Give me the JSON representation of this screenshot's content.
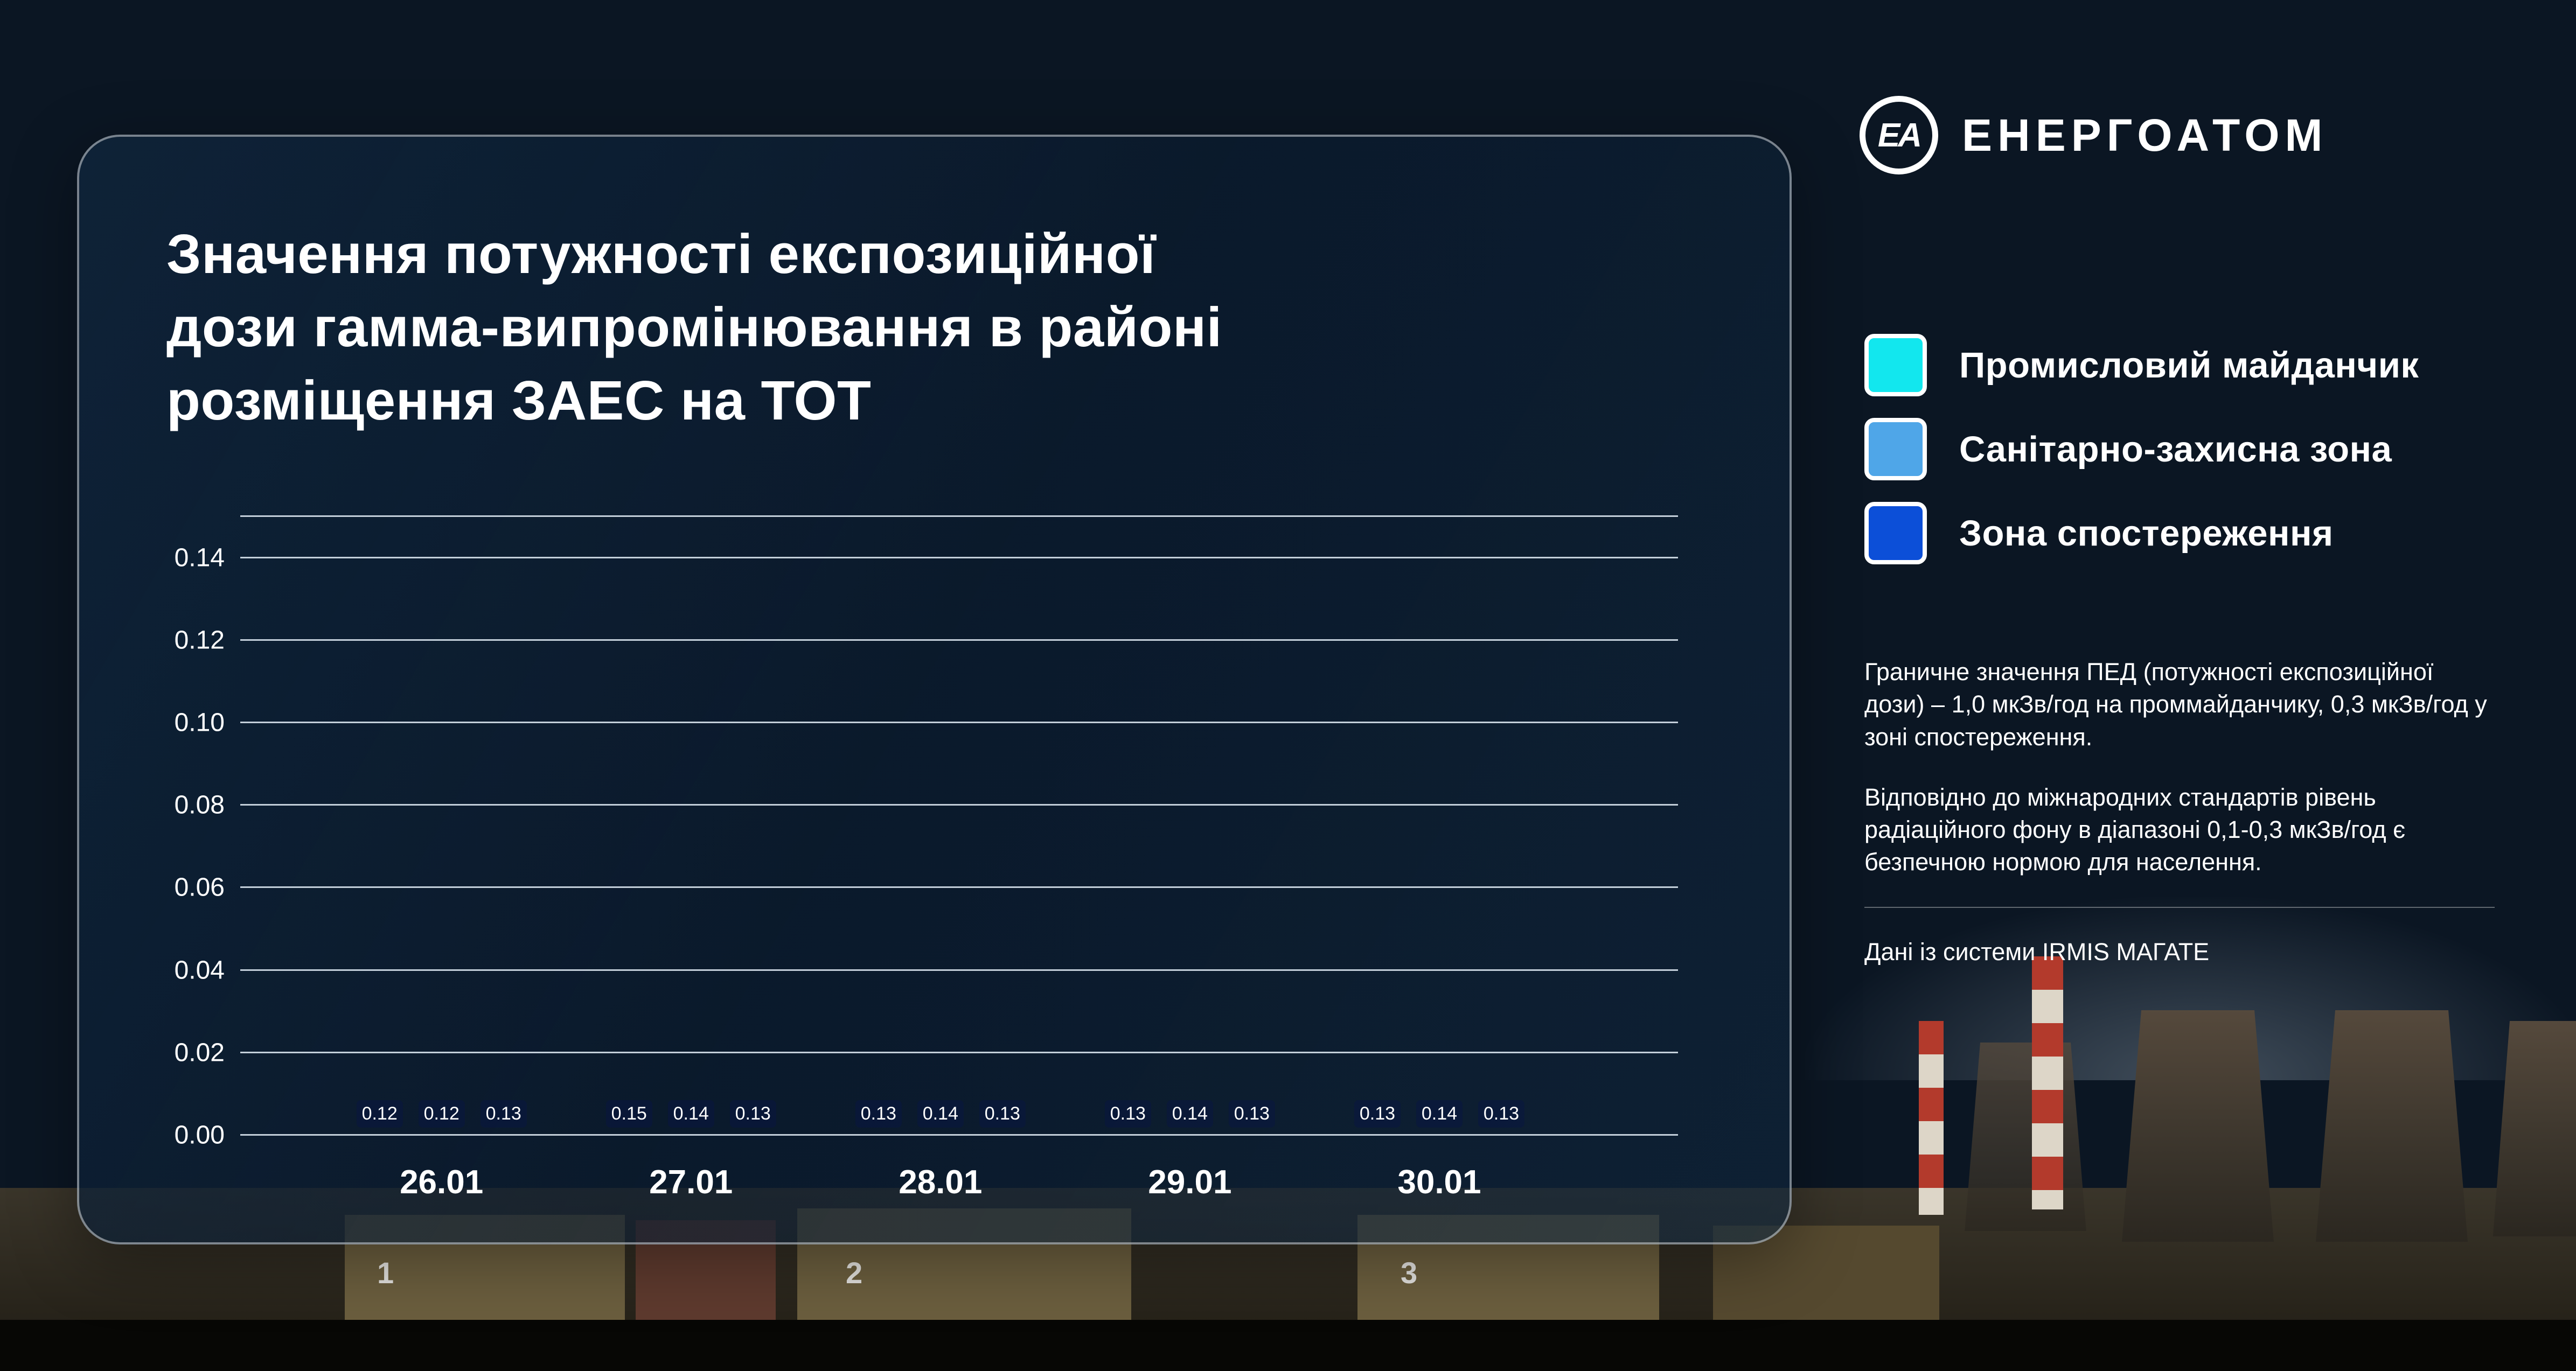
{
  "brand": {
    "name": "ЕНЕРГОАТОМ",
    "monogram": "ЕА"
  },
  "card": {
    "title_lines": [
      "Значення потужності експозиційної",
      "дози гамма-випромінювання в районі",
      "розміщення ЗАЕС на ТОТ"
    ]
  },
  "chart_data": {
    "type": "bar",
    "title": "Значення потужності експозиційної дози гамма-випромінювання в районі розміщення ЗАЕС на ТОТ",
    "categories": [
      "26.01",
      "27.01",
      "28.01",
      "29.01",
      "30.01"
    ],
    "series": [
      {
        "name": "Промисловий майданчик",
        "color": "#12E7EE",
        "values": [
          0.12,
          0.15,
          0.13,
          0.13,
          0.13
        ]
      },
      {
        "name": "Санітарно-захисна зона",
        "color": "#4FA6E8",
        "values": [
          0.12,
          0.14,
          0.14,
          0.14,
          0.14
        ]
      },
      {
        "name": "Зона спостереження",
        "color": "#0C4FD8",
        "values": [
          0.13,
          0.13,
          0.13,
          0.13,
          0.13
        ]
      }
    ],
    "y_ticks": [
      0,
      0.02,
      0.04,
      0.06,
      0.08,
      0.1,
      0.12,
      0.14
    ],
    "ylim": [
      0,
      0.15
    ],
    "grid": true,
    "legend_position": "right",
    "value_labels": true,
    "xlabel": "",
    "ylabel": ""
  },
  "notes": {
    "p1": "Граничне значення ПЕД (потужності експозиційної дози) – 1,0 мкЗв/год на проммайданчику, 0,3 мкЗв/год у зоні спостереження.",
    "p2": "Відповідно до міжнародних стандартів рівень радіаційного фону в діапазоні 0,1-0,3 мкЗв/год є безпечною нормою для населення.",
    "p3": "Дані із системи IRMIS МАГАТЕ"
  },
  "background": {
    "unit_numbers": [
      "1",
      "2",
      "3"
    ]
  }
}
